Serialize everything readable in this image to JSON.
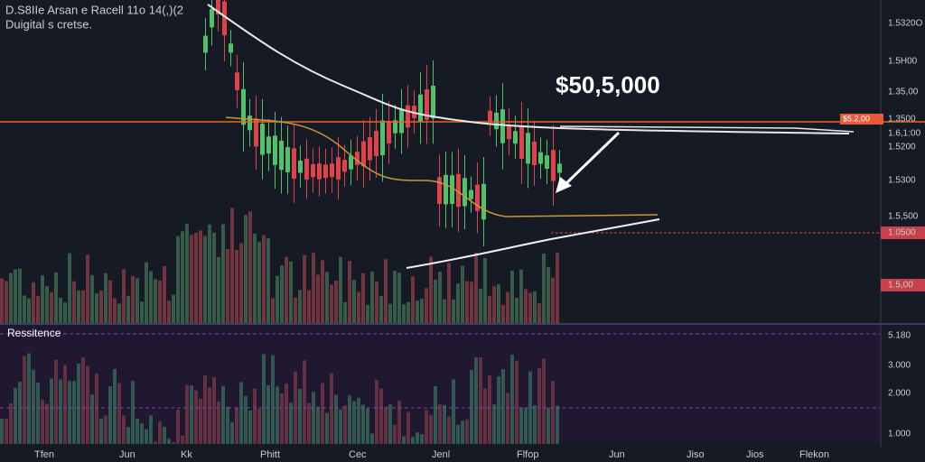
{
  "header": {
    "title": "D.S8IIe Arsan e Racell 11o 14(,)(2",
    "subtitle": "Duigital s cretse."
  },
  "annotation": "$50,5,000",
  "panel_label": "Ressitence",
  "price_tag": "$5.2,00",
  "y_axis": [
    "1.5320O",
    "1.5H00",
    "1.35,00",
    "1.3500",
    "1.6,1:00",
    "1.5200",
    "1.5300",
    "1.5,500",
    "1.0500",
    "1.5,00",
    "5.180",
    "3.000",
    "2.000",
    "1.000"
  ],
  "x_axis": [
    "Tfen",
    "Jun",
    "Kk",
    "Phitt",
    "Cec",
    "Jenl",
    "Flfop",
    "Jun",
    "Jiso",
    "Jios",
    "Flekon"
  ]
}
